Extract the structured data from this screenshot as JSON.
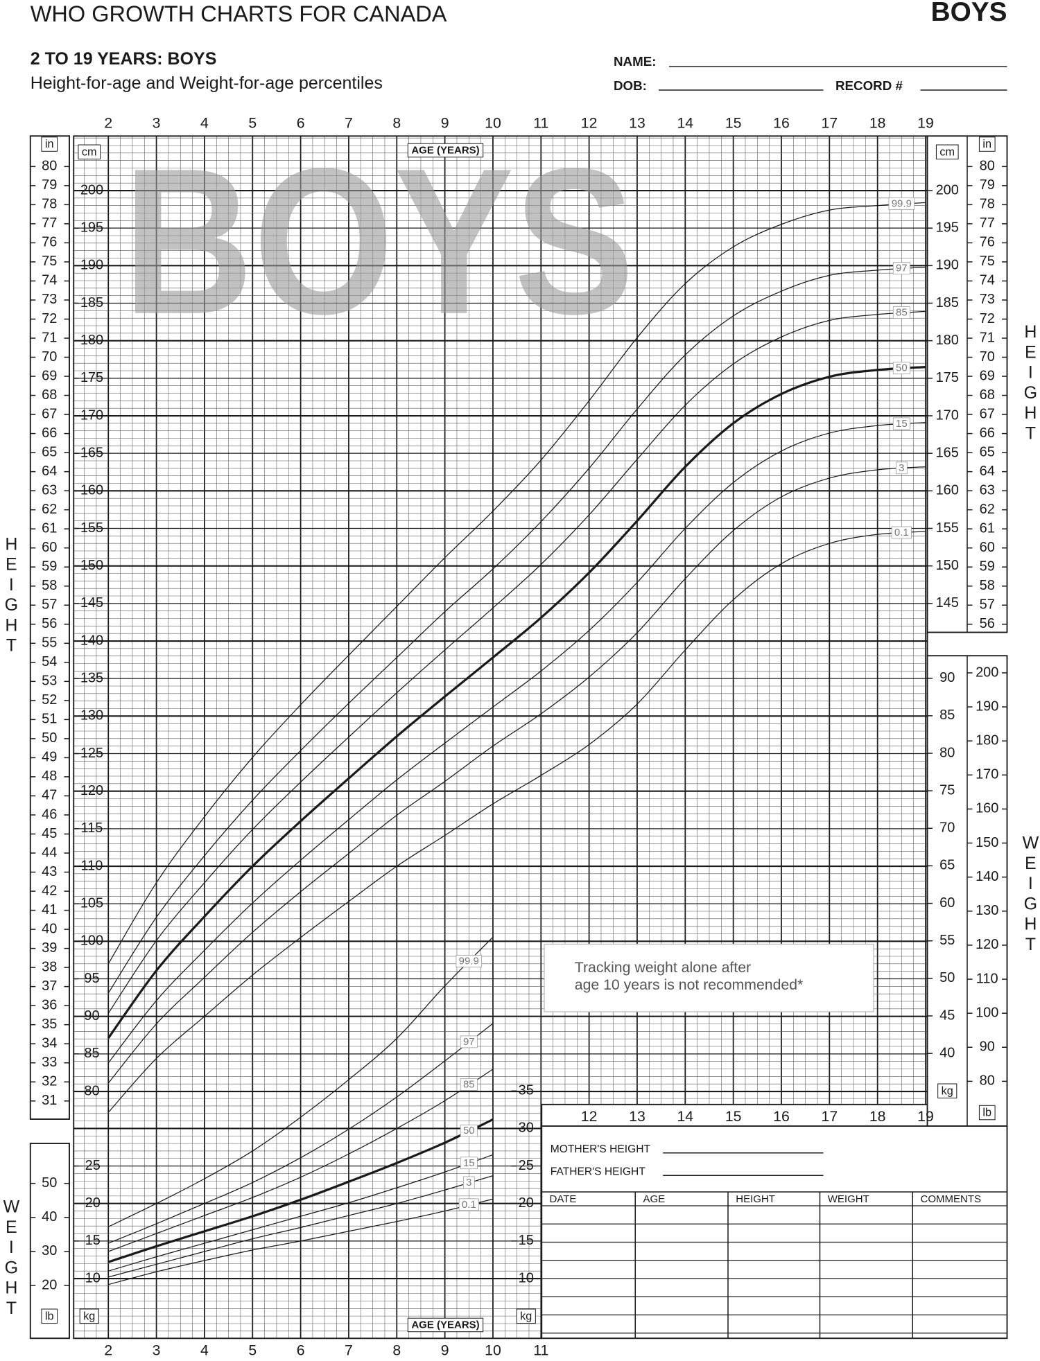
{
  "header": {
    "title": "WHO GROWTH CHARTS FOR CANADA",
    "badge": "BOYS",
    "subtitle": "2 TO 19 YEARS: BOYS",
    "description": "Height-for-age and Weight-for-age percentiles",
    "watermark": "BOYS"
  },
  "form": {
    "name": "NAME:",
    "dob": "DOB:",
    "record": "RECORD #",
    "mother": "MOTHER'S HEIGHT",
    "father": "FATHER'S HEIGHT"
  },
  "table": {
    "columns": [
      "DATE",
      "AGE",
      "HEIGHT",
      "WEIGHT",
      "COMMENTS"
    ]
  },
  "note": [
    "Tracking weight alone after",
    "age 10 years is not recommended*"
  ],
  "chart_data": [
    {
      "type": "line",
      "side_label": "HEIGHT",
      "xlabel": "AGE (YEARS)",
      "ylabel": "cm",
      "y2label": "in",
      "grid": true,
      "x": [
        2,
        3,
        4,
        5,
        6,
        7,
        8,
        9,
        10,
        11,
        12,
        13,
        14,
        15,
        16,
        17,
        18,
        19
      ],
      "xlim": [
        2,
        19
      ],
      "xticks": [
        2,
        3,
        4,
        5,
        6,
        7,
        8,
        9,
        10,
        11,
        12,
        13,
        14,
        15,
        16,
        17,
        18,
        19
      ],
      "ylim": [
        80,
        200
      ],
      "yticks": [
        80,
        85,
        90,
        95,
        100,
        105,
        110,
        115,
        120,
        125,
        130,
        135,
        140,
        145,
        150,
        155,
        160,
        165,
        170,
        175,
        180,
        185,
        190,
        195,
        200
      ],
      "y2lim": [
        31.5,
        78.74
      ],
      "y2ticks": [
        31,
        32,
        33,
        34,
        35,
        36,
        37,
        38,
        39,
        40,
        41,
        42,
        43,
        44,
        45,
        46,
        47,
        48,
        49,
        50,
        51,
        52,
        53,
        54,
        55,
        56,
        57,
        58,
        59,
        60,
        61,
        62,
        63,
        64,
        65,
        66,
        67,
        68,
        69,
        70,
        71,
        72,
        73,
        74,
        75,
        76,
        77,
        78,
        79,
        80
      ],
      "series": [
        {
          "name": "0.1",
          "color": "#1a1a1a",
          "line_width": 1,
          "values": [
            77.2,
            84.4,
            90.0,
            95.5,
            100.5,
            105.3,
            110.0,
            114.1,
            118.3,
            122.1,
            126.2,
            131.6,
            138.8,
            145.5,
            150.3,
            153.0,
            154.2,
            154.6
          ]
        },
        {
          "name": "3",
          "color": "#1a1a1a",
          "line_width": 1,
          "values": [
            81.1,
            89.0,
            95.2,
            101.2,
            106.6,
            111.7,
            116.8,
            121.3,
            126.0,
            130.3,
            135.2,
            141.1,
            148.3,
            154.7,
            159.2,
            161.7,
            162.8,
            163.2
          ]
        },
        {
          "name": "15",
          "color": "#1a1a1a",
          "line_width": 1,
          "values": [
            83.8,
            92.1,
            98.8,
            105.1,
            110.8,
            116.2,
            121.5,
            126.4,
            131.2,
            136.0,
            141.4,
            147.8,
            155.0,
            161.1,
            165.3,
            167.7,
            168.7,
            169.1
          ]
        },
        {
          "name": "50",
          "color": "#1a1a1a",
          "line_width": 2.6,
          "values": [
            87.1,
            96.1,
            103.3,
            110.0,
            116.0,
            121.7,
            127.3,
            132.6,
            137.8,
            143.1,
            149.1,
            156.0,
            163.2,
            169.0,
            172.9,
            175.2,
            176.1,
            176.5
          ]
        },
        {
          "name": "85",
          "color": "#1a1a1a",
          "line_width": 1,
          "values": [
            90.4,
            100.1,
            107.8,
            114.9,
            121.2,
            127.2,
            133.1,
            138.8,
            144.4,
            150.2,
            156.8,
            164.2,
            171.4,
            176.9,
            180.5,
            182.7,
            183.5,
            183.9
          ]
        },
        {
          "name": "97",
          "color": "#1a1a1a",
          "line_width": 1,
          "values": [
            93.1,
            103.2,
            111.4,
            118.8,
            125.4,
            131.7,
            137.8,
            143.9,
            149.6,
            155.9,
            163.0,
            170.9,
            178.1,
            183.3,
            186.6,
            188.7,
            189.4,
            189.8
          ]
        },
        {
          "name": "99.9",
          "color": "#1a1a1a",
          "line_width": 1,
          "values": [
            97.0,
            107.8,
            116.6,
            124.5,
            131.5,
            138.1,
            144.6,
            151.1,
            157.3,
            164.1,
            172.0,
            180.4,
            187.6,
            192.5,
            195.5,
            197.4,
            198.0,
            198.4
          ]
        }
      ]
    },
    {
      "type": "line",
      "side_label": "WEIGHT",
      "xlabel": "AGE (YEARS)",
      "ylabel": "kg",
      "y2label": "lb",
      "grid": true,
      "x": [
        2,
        3,
        4,
        5,
        6,
        7,
        8,
        9,
        10
      ],
      "xlim": [
        2,
        19
      ],
      "xticks": [
        2,
        3,
        4,
        5,
        6,
        7,
        8,
        9,
        10,
        11,
        12,
        13,
        14,
        15,
        16,
        17,
        18,
        19
      ],
      "ylim": [
        10,
        90
      ],
      "yticks": [
        10,
        15,
        20,
        25,
        30,
        35,
        40,
        45,
        50,
        55,
        60,
        65,
        70,
        75,
        80,
        85,
        90
      ],
      "y2lim": [
        22.05,
        198.42
      ],
      "y2ticks": [
        20,
        30,
        40,
        50,
        80,
        90,
        100,
        110,
        120,
        130,
        140,
        150,
        160,
        170,
        180,
        190,
        200
      ],
      "series": [
        {
          "name": "0.1",
          "color": "#1a1a1a",
          "line_width": 1,
          "values": [
            9.2,
            10.9,
            12.4,
            13.8,
            15.0,
            16.3,
            17.6,
            19.0,
            20.6
          ]
        },
        {
          "name": "3",
          "color": "#1a1a1a",
          "line_width": 1,
          "values": [
            10.2,
            11.9,
            13.6,
            15.3,
            16.8,
            18.4,
            20.0,
            21.8,
            23.7
          ]
        },
        {
          "name": "15",
          "color": "#1a1a1a",
          "line_width": 1,
          "values": [
            11.0,
            12.9,
            14.7,
            16.5,
            18.3,
            20.1,
            22.1,
            24.2,
            26.5
          ]
        },
        {
          "name": "50",
          "color": "#1a1a1a",
          "line_width": 2.6,
          "values": [
            12.2,
            14.3,
            16.3,
            18.3,
            20.5,
            22.9,
            25.4,
            28.1,
            31.2
          ]
        },
        {
          "name": "85",
          "color": "#1a1a1a",
          "line_width": 1,
          "values": [
            13.6,
            16.0,
            18.4,
            20.8,
            23.5,
            26.6,
            30.0,
            33.7,
            37.9
          ]
        },
        {
          "name": "97",
          "color": "#1a1a1a",
          "line_width": 1,
          "values": [
            14.7,
            17.3,
            20.0,
            22.8,
            26.1,
            29.9,
            34.2,
            39.0,
            44.0
          ]
        },
        {
          "name": "99.9",
          "color": "#1a1a1a",
          "line_width": 1,
          "values": [
            16.9,
            20.0,
            23.3,
            27.0,
            31.5,
            36.5,
            42.0,
            49.0,
            55.5
          ]
        }
      ]
    }
  ]
}
